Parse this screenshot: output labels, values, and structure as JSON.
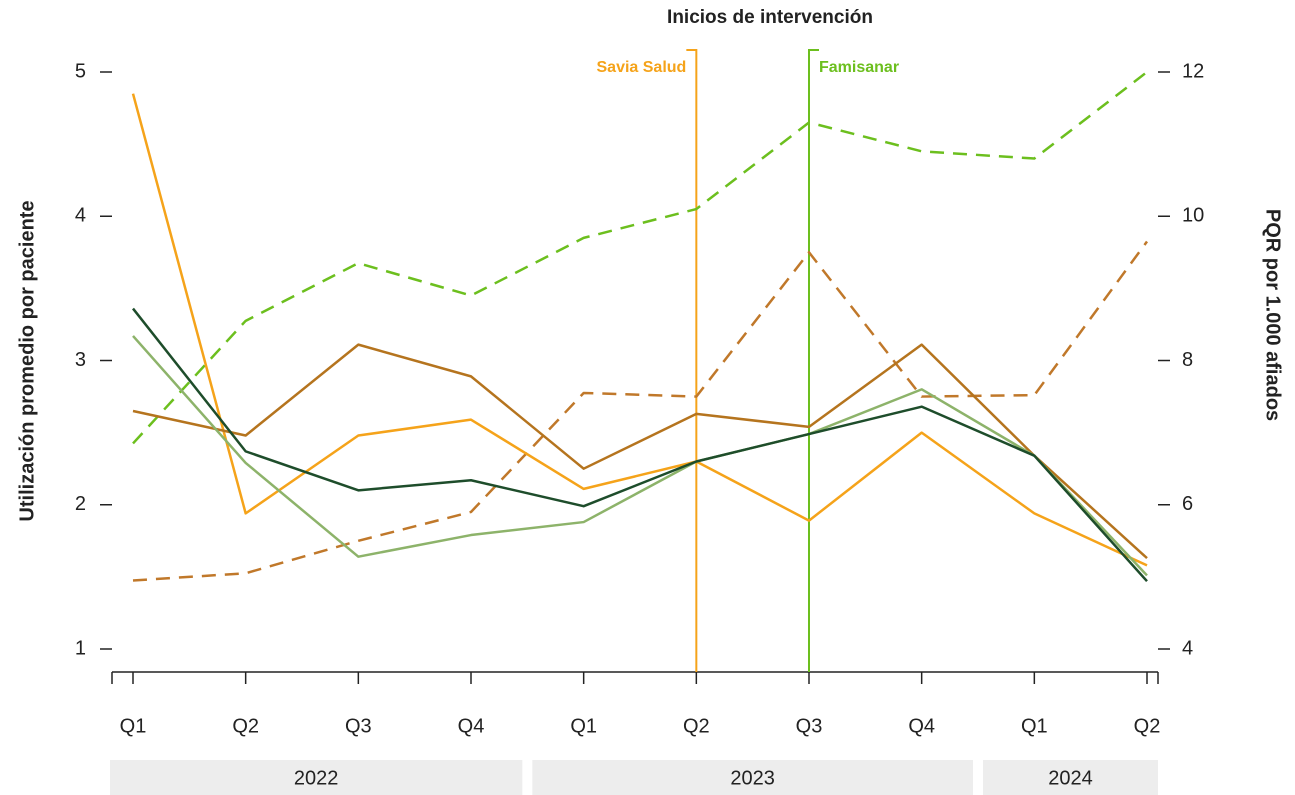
{
  "chart_data": {
    "type": "line",
    "annotation_title": "Inicios de intervención",
    "ylabel": "Utilización promedio por paciente",
    "y2label": "PQR por 1.000 afiados",
    "categories": [
      "Q1",
      "Q2",
      "Q3",
      "Q4",
      "Q1",
      "Q2",
      "Q3",
      "Q4",
      "Q1",
      "Q2"
    ],
    "year_groups": [
      {
        "label": "2022",
        "count": 4
      },
      {
        "label": "2023",
        "count": 4
      },
      {
        "label": "2024",
        "count": 2
      }
    ],
    "ylim": [
      1,
      5
    ],
    "yticks": [
      1,
      2,
      3,
      4,
      5
    ],
    "y2lim": [
      4,
      12
    ],
    "y2ticks": [
      4,
      6,
      8,
      10,
      12
    ],
    "series": [
      {
        "color": "#6cbf1e",
        "linestyle": "dashed",
        "axis": "y2",
        "values": [
          6.85,
          8.55,
          9.35,
          8.9,
          9.7,
          10.1,
          11.3,
          10.9,
          10.8,
          12.0
        ]
      },
      {
        "color": "#c0782a",
        "linestyle": "dashed",
        "axis": "y2",
        "values": [
          4.95,
          5.05,
          5.5,
          5.9,
          7.55,
          7.5,
          9.5,
          7.5,
          7.52,
          9.65
        ]
      },
      {
        "color": "#f5a31a",
        "linestyle": "solid",
        "values": [
          4.85,
          1.94,
          2.48,
          2.59,
          2.11,
          2.3,
          1.89,
          2.5,
          1.94,
          1.58
        ]
      },
      {
        "color": "#b5741e",
        "linestyle": "solid",
        "values": [
          2.65,
          2.48,
          3.11,
          2.89,
          2.25,
          2.63,
          2.54,
          3.11,
          2.34,
          1.63
        ]
      },
      {
        "color": "#8db36a",
        "linestyle": "solid",
        "values": [
          3.17,
          2.29,
          1.64,
          1.79,
          1.88,
          2.3,
          2.49,
          2.8,
          2.34,
          1.51
        ]
      },
      {
        "color": "#1e4d2b",
        "linestyle": "solid",
        "values": [
          3.36,
          2.37,
          2.1,
          2.17,
          1.99,
          2.3,
          2.49,
          2.68,
          2.34,
          1.47
        ]
      }
    ],
    "interventions": [
      {
        "label": "Savia Salud",
        "index": 5,
        "color": "#f5a31a"
      },
      {
        "label": "Famisanar",
        "index": 6,
        "color": "#6cbf1e"
      }
    ]
  }
}
